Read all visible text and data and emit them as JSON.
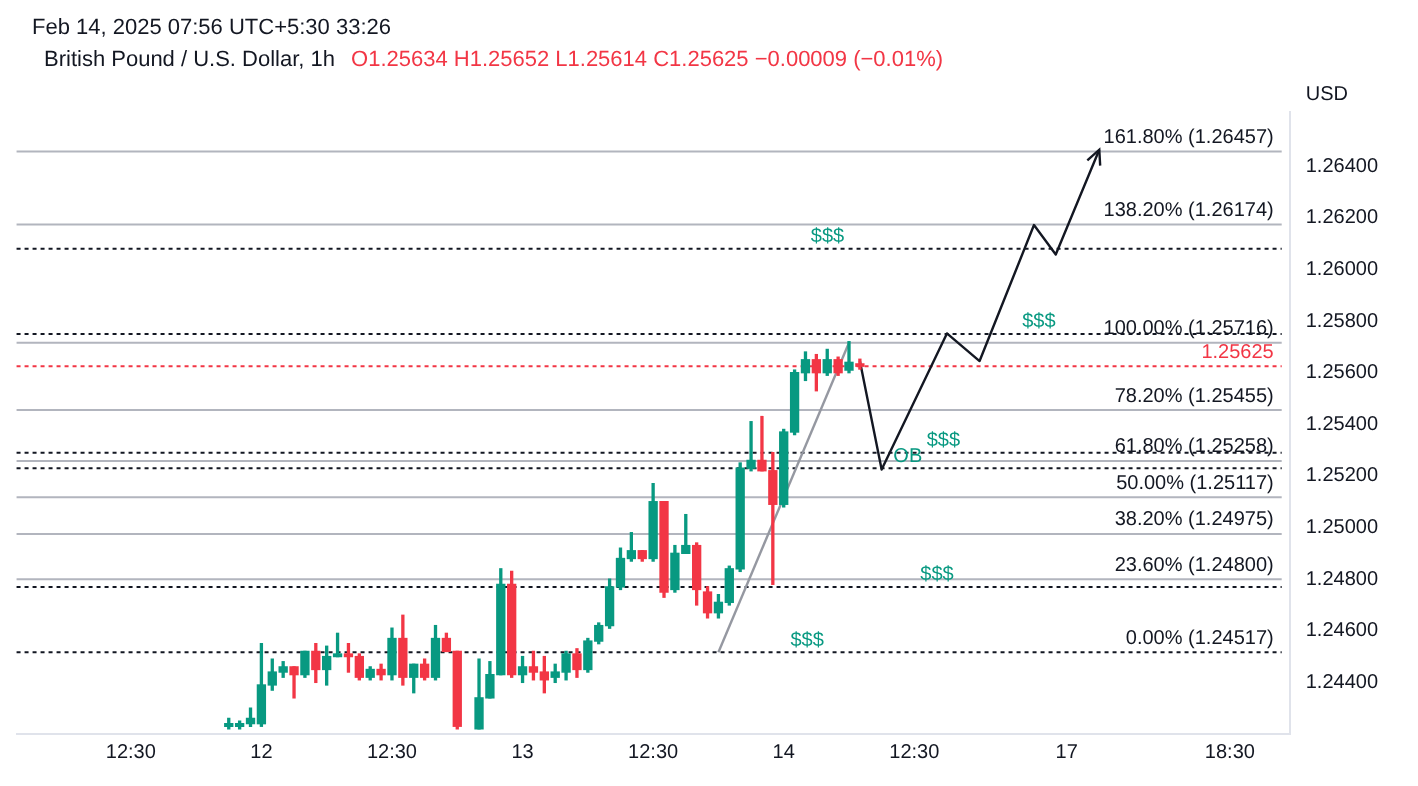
{
  "chart_data": {
    "type": "candlestick",
    "title": "British Pound / U.S. Dollar, 1h",
    "subtitle": "O1.25634 H1.25652 L1.25614 C1.25625 −0.00009 (−0.01%)",
    "ylabel": "USD",
    "annotations": [
      "Feb 14, 2025 07:56 UTC+5:30",
      "33:26",
      {
        "text": "$$$",
        "y": 1.2608
      },
      {
        "text": "$$$",
        "y": 1.2575
      },
      {
        "text": "$$$",
        "y": 1.2529
      },
      {
        "text": "OB",
        "y": 1.2523
      },
      {
        "text": "$$$",
        "y": 1.2477
      },
      {
        "text": "$$$",
        "y": 1.24517
      }
    ],
    "categories": [
      null,
      null,
      null,
      null,
      null,
      null,
      null,
      null,
      null,
      null,
      "12:30",
      null,
      null,
      null,
      null,
      null,
      null,
      null,
      null,
      null,
      null,
      null,
      "12",
      null,
      null,
      null,
      null,
      null,
      null,
      null,
      null,
      null,
      null,
      null,
      "12:30",
      null,
      null,
      null,
      null,
      null,
      null,
      null,
      null,
      null,
      null,
      null,
      "13",
      null,
      null,
      null,
      null,
      null,
      null,
      null,
      null,
      null,
      null,
      null,
      "12:30",
      null,
      null,
      null,
      null,
      null,
      null,
      null,
      null,
      null,
      null,
      null,
      "14",
      null,
      null,
      null,
      null,
      null,
      null,
      null,
      null,
      null,
      null,
      null,
      "12:30",
      null,
      null,
      null,
      null,
      null,
      null,
      null,
      null,
      null,
      null,
      null,
      null,
      null,
      "17",
      null,
      null,
      null,
      null,
      null,
      null,
      null,
      null,
      null,
      null,
      null,
      null,
      null,
      null,
      "18:30",
      null,
      null,
      null,
      null,
      null
    ],
    "ohlc": [
      null,
      null,
      null,
      null,
      null,
      null,
      null,
      null,
      null,
      null,
      null,
      null,
      null,
      null,
      null,
      null,
      null,
      null,
      null,
      [
        1.2423,
        1.2426,
        1.2422,
        1.2424
      ],
      [
        1.2423,
        1.2425,
        1.2422,
        1.2424
      ],
      [
        1.2424,
        1.243,
        1.2423,
        1.2426
      ],
      [
        1.2424,
        1.2455,
        1.2423,
        1.2439
      ],
      [
        1.2439,
        1.2449,
        1.2437,
        1.2444
      ],
      [
        1.2444,
        1.2448,
        1.2442,
        1.2446
      ],
      [
        1.2446,
        1.2446,
        1.2434,
        1.2443
      ],
      [
        1.2443,
        1.2452,
        1.2442,
        1.2452
      ],
      [
        1.2452,
        1.2455,
        1.244,
        1.2445
      ],
      [
        1.2445,
        1.2454,
        1.2439,
        1.245
      ],
      [
        1.245,
        1.2459,
        1.245,
        1.2451
      ],
      [
        1.2451,
        1.2455,
        1.2444,
        1.245
      ],
      [
        1.245,
        1.2451,
        1.2441,
        1.2442
      ],
      [
        1.2442,
        1.2446,
        1.2441,
        1.2445
      ],
      [
        1.2445,
        1.2447,
        1.2441,
        1.2443
      ],
      [
        1.2443,
        1.2461,
        1.2441,
        1.2457
      ],
      [
        1.2457,
        1.2466,
        1.2439,
        1.2442
      ],
      [
        1.2442,
        1.2447,
        1.2436,
        1.2447
      ],
      [
        1.2447,
        1.2449,
        1.2441,
        1.2442
      ],
      [
        1.2442,
        1.2462,
        1.2441,
        1.2457
      ],
      [
        1.2457,
        1.2459,
        1.2452,
        1.2452
      ],
      [
        1.2452,
        1.2452,
        1.2422,
        1.2423
      ],
      null,
      [
        1.2422,
        1.2449,
        1.2422,
        1.2434
      ],
      [
        1.2434,
        1.2448,
        1.2434,
        1.2443
      ],
      [
        1.2443,
        1.2484,
        1.2443,
        1.2478
      ],
      [
        1.2478,
        1.2483,
        1.2442,
        1.2443
      ],
      [
        1.2443,
        1.245,
        1.244,
        1.2446
      ],
      [
        1.2446,
        1.2452,
        1.2441,
        1.2444
      ],
      [
        1.2444,
        1.245,
        1.2436,
        1.2441
      ],
      [
        1.2442,
        1.2447,
        1.244,
        1.2444
      ],
      [
        1.2444,
        1.2452,
        1.2441,
        1.2451
      ],
      [
        1.2451,
        1.2453,
        1.2442,
        1.2445
      ],
      [
        1.2445,
        1.2457,
        1.2444,
        1.2456
      ],
      [
        1.2456,
        1.2463,
        1.2455,
        1.2462
      ],
      [
        1.2462,
        1.248,
        1.2461,
        1.2477
      ],
      [
        1.2477,
        1.2492,
        1.2476,
        1.2488
      ],
      [
        1.2488,
        1.2498,
        1.2487,
        1.2491
      ],
      [
        1.2491,
        1.2491,
        1.2487,
        1.2488
      ],
      [
        1.2488,
        1.2517,
        1.2487,
        1.251
      ],
      [
        1.251,
        1.251,
        1.2473,
        1.2475
      ],
      [
        1.2476,
        1.2493,
        1.2475,
        1.249
      ],
      [
        1.249,
        1.2505,
        1.249,
        1.2493
      ],
      [
        1.2493,
        1.2494,
        1.247,
        1.2476
      ],
      [
        1.2475,
        1.2477,
        1.2465,
        1.2467
      ],
      [
        1.2467,
        1.2474,
        1.2465,
        1.2471
      ],
      [
        1.2471,
        1.2485,
        1.247,
        1.2484
      ],
      [
        1.2484,
        1.2525,
        1.2483,
        1.2523
      ],
      [
        1.2523,
        1.2541,
        1.2522,
        1.2526
      ],
      [
        1.2526,
        1.2543,
        1.2522,
        1.2522
      ],
      [
        1.2522,
        1.2529,
        1.2478,
        1.2509
      ],
      [
        1.2509,
        1.2538,
        1.2508,
        1.2537
      ],
      [
        1.2537,
        1.2561,
        1.2536,
        1.256
      ],
      [
        1.256,
        1.2568,
        1.2557,
        1.2565
      ],
      [
        1.2565,
        1.2567,
        1.2553,
        1.256
      ],
      [
        1.256,
        1.2569,
        1.2559,
        1.2565
      ],
      [
        1.2565,
        1.2566,
        1.2559,
        1.256
      ],
      [
        1.2561,
        1.2572,
        1.256,
        1.2564
      ],
      [
        1.25634,
        1.25652,
        1.25614,
        1.25625
      ],
      null,
      null,
      null,
      null,
      null,
      null,
      null,
      null,
      null,
      null,
      null,
      null,
      null,
      null,
      null,
      null,
      null,
      null,
      null,
      null,
      null,
      null,
      null,
      null,
      null,
      null,
      null,
      null,
      null,
      null,
      null,
      null,
      null,
      null,
      null,
      null,
      null,
      null,
      null
    ],
    "colors": [
      null,
      null,
      null,
      null,
      null,
      null,
      null,
      null,
      null,
      null,
      null,
      null,
      null,
      null,
      null,
      null,
      null,
      null,
      null,
      "#089981",
      "#089981",
      "#089981",
      "#089981",
      "#089981",
      "#089981",
      "#f23645",
      "#089981",
      "#f23645",
      "#089981",
      "#089981",
      "#f23645",
      "#f23645",
      "#089981",
      "#f23645",
      "#089981",
      "#f23645",
      "#089981",
      "#f23645",
      "#089981",
      "#f23645",
      "#f23645",
      null,
      "#089981",
      "#089981",
      "#089981",
      "#f23645",
      "#089981",
      "#f23645",
      "#f23645",
      "#089981",
      "#089981",
      "#f23645",
      "#089981",
      "#089981",
      "#089981",
      "#089981",
      "#089981",
      "#f23645",
      "#089981",
      "#f23645",
      "#089981",
      "#089981",
      "#f23645",
      "#f23645",
      "#089981",
      "#089981",
      "#089981",
      "#089981",
      "#f23645",
      "#f23645",
      "#089981",
      "#089981",
      "#089981",
      "#f23645",
      "#089981",
      "#f23645",
      "#089981",
      "#f23645",
      null,
      null,
      null,
      null,
      null,
      null,
      null,
      null,
      null,
      null,
      null,
      null,
      null,
      null,
      null,
      null,
      null,
      null,
      null,
      null,
      null,
      null,
      null,
      null,
      null,
      null,
      null,
      null,
      null,
      null,
      null,
      null,
      null,
      null,
      null,
      null,
      null,
      null,
      null
    ],
    "series": [
      {
        "type": "line",
        "color": "#9598a1",
        "values": [
          null,
          null,
          null,
          null,
          null,
          null,
          null,
          null,
          null,
          null,
          null,
          null,
          null,
          null,
          null,
          null,
          null,
          null,
          null,
          null,
          null,
          null,
          null,
          null,
          null,
          null,
          null,
          null,
          null,
          null,
          null,
          null,
          null,
          null,
          null,
          null,
          null,
          null,
          null,
          null,
          null,
          null,
          null,
          null,
          null,
          null,
          null,
          null,
          null,
          null,
          null,
          null,
          null,
          null,
          null,
          null,
          null,
          null,
          null,
          null,
          null,
          null,
          null,
          null,
          1.24517,
          null,
          null,
          null,
          null,
          null,
          null,
          null,
          null,
          null,
          null,
          null,
          1.25716,
          null,
          null,
          null,
          null,
          null,
          null,
          null,
          null,
          null,
          null,
          null,
          null,
          null,
          null,
          null,
          null,
          null,
          null,
          null,
          null,
          null,
          null,
          null,
          null,
          null,
          null,
          null,
          null,
          null,
          null,
          null,
          null,
          null,
          null,
          null,
          null,
          null,
          null,
          null,
          null
        ]
      },
      {
        "type": "line",
        "color": "#131722",
        "values": [
          null,
          null,
          null,
          null,
          null,
          null,
          null,
          null,
          null,
          null,
          null,
          null,
          null,
          null,
          null,
          null,
          null,
          null,
          null,
          null,
          null,
          null,
          null,
          null,
          null,
          null,
          null,
          null,
          null,
          null,
          null,
          null,
          null,
          null,
          null,
          null,
          null,
          null,
          null,
          null,
          null,
          null,
          null,
          null,
          null,
          null,
          null,
          null,
          null,
          null,
          null,
          null,
          null,
          null,
          null,
          null,
          null,
          null,
          null,
          null,
          null,
          null,
          null,
          null,
          null,
          null,
          null,
          null,
          null,
          null,
          null,
          null,
          null,
          null,
          null,
          null,
          null,
          1.25645,
          null,
          1.25225,
          null,
          null,
          null,
          null,
          null,
          1.25752,
          null,
          null,
          1.25645,
          null,
          null,
          null,
          null,
          1.26172,
          null,
          1.26058,
          null,
          null,
          null,
          1.26464,
          null,
          null,
          null,
          null,
          null,
          null,
          null,
          null,
          null,
          null,
          null,
          null,
          null,
          null,
          null,
          null,
          null
        ]
      }
    ],
    "ref_lines": [
      {
        "axis": "y",
        "value": 1.26457,
        "label": "161.80% (1.26457)",
        "color": "#b2b5be",
        "line_style": "solid"
      },
      {
        "axis": "y",
        "value": 1.26174,
        "label": "138.20% (1.26174)",
        "color": "#b2b5be",
        "line_style": "solid"
      },
      {
        "axis": "y",
        "value": 1.25716,
        "label": "100.00% (1.25716)",
        "color": "#b2b5be",
        "line_style": "solid"
      },
      {
        "axis": "y",
        "value": 1.25455,
        "label": "78.20% (1.25455)",
        "color": "#b2b5be",
        "line_style": "solid"
      },
      {
        "axis": "y",
        "value": 1.25258,
        "label": "61.80% (1.25258)",
        "color": "#b2b5be",
        "line_style": "solid"
      },
      {
        "axis": "y",
        "value": 1.25117,
        "label": "50.00% (1.25117)",
        "color": "#b2b5be",
        "line_style": "solid"
      },
      {
        "axis": "y",
        "value": 1.24975,
        "label": "38.20% (1.24975)",
        "color": "#b2b5be",
        "line_style": "solid"
      },
      {
        "axis": "y",
        "value": 1.248,
        "label": "23.60% (1.24800)",
        "color": "#b2b5be",
        "line_style": "solid"
      },
      {
        "axis": "y",
        "value": 1.24517,
        "label": "0.00% (1.24517)",
        "color": "#131722",
        "line_style": "dotted"
      },
      {
        "axis": "y",
        "value": 1.2608,
        "color": "#131722",
        "line_style": "dotted"
      },
      {
        "axis": "y",
        "value": 1.2575,
        "color": "#131722",
        "line_style": "dotted"
      },
      {
        "axis": "y",
        "value": 1.2529,
        "color": "#131722",
        "line_style": "dotted"
      },
      {
        "axis": "y",
        "value": 1.2523,
        "color": "#131722",
        "line_style": "dotted"
      },
      {
        "axis": "y",
        "value": 1.2477,
        "color": "#131722",
        "line_style": "dotted"
      },
      {
        "axis": "y",
        "value": 1.25625,
        "label": "1.25625",
        "color": "#f23645",
        "line_style": "dotted"
      }
    ],
    "ylim": [
      1.242,
      1.2661
    ],
    "yticks": [
      {
        "value": 1.244,
        "label": "1.24400"
      },
      {
        "value": 1.246,
        "label": "1.24600"
      },
      {
        "value": 1.248,
        "label": "1.24800"
      },
      {
        "value": 1.25,
        "label": "1.25000"
      },
      {
        "value": 1.252,
        "label": "1.25200"
      },
      {
        "value": 1.254,
        "label": "1.25400"
      },
      {
        "value": 1.256,
        "label": "1.25600"
      },
      {
        "value": 1.258,
        "label": "1.25800"
      },
      {
        "value": 1.26,
        "label": "1.26000"
      },
      {
        "value": 1.262,
        "label": "1.26200"
      },
      {
        "value": 1.264,
        "label": "1.26400"
      }
    ],
    "grid": false,
    "legend": false
  }
}
